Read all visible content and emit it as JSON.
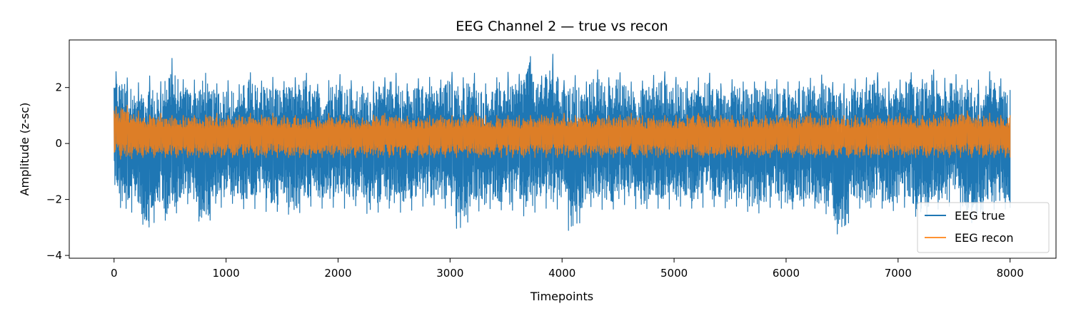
{
  "chart_data": {
    "type": "line",
    "title": "EEG Channel 2 — true vs recon",
    "xlabel": "Timepoints",
    "ylabel": "Amplitude (z-sc)",
    "xlim": [
      -400,
      8410
    ],
    "ylim": [
      -4.1,
      3.7
    ],
    "xticks": [
      0,
      1000,
      2000,
      3000,
      4000,
      5000,
      6000,
      7000,
      8000
    ],
    "xtick_labels": [
      "0",
      "1000",
      "2000",
      "3000",
      "4000",
      "5000",
      "6000",
      "7000",
      "8000"
    ],
    "yticks": [
      -4,
      -2,
      0,
      2
    ],
    "ytick_labels": [
      "−4",
      "−2",
      "0",
      "2"
    ],
    "grid": false,
    "legend": "lower-right",
    "series": [
      {
        "name": "EEG true",
        "color": "#1f77b4",
        "sampled": true,
        "x": [
          0,
          100,
          200,
          300,
          400,
          500,
          600,
          700,
          800,
          900,
          1000,
          1100,
          1200,
          1300,
          1400,
          1500,
          1600,
          1700,
          1800,
          1900,
          2000,
          2100,
          2200,
          2300,
          2400,
          2500,
          2600,
          2700,
          2800,
          2900,
          3000,
          3100,
          3200,
          3300,
          3400,
          3500,
          3600,
          3700,
          3800,
          3900,
          4000,
          4100,
          4200,
          4300,
          4400,
          4500,
          4600,
          4700,
          4800,
          4900,
          5000,
          5100,
          5200,
          5300,
          5400,
          5500,
          5600,
          5700,
          5800,
          5900,
          6000,
          6100,
          6200,
          6300,
          6400,
          6500,
          6600,
          6700,
          6800,
          6900,
          7000,
          7100,
          7200,
          7300,
          7400,
          7500,
          7600,
          7700,
          7800,
          7900,
          8000
        ],
        "y_max": [
          2.6,
          2.4,
          2.1,
          2.5,
          2.0,
          3.2,
          2.3,
          2.2,
          2.6,
          2.1,
          2.3,
          2.0,
          2.6,
          2.2,
          2.4,
          2.2,
          2.3,
          2.6,
          2.1,
          2.2,
          2.5,
          2.3,
          2.0,
          2.2,
          2.3,
          2.6,
          2.1,
          2.3,
          2.4,
          2.2,
          2.6,
          2.3,
          2.6,
          2.1,
          2.3,
          2.6,
          2.3,
          3.3,
          2.2,
          3.4,
          2.2,
          2.5,
          2.1,
          2.7,
          2.3,
          2.6,
          2.2,
          2.2,
          2.4,
          2.6,
          2.4,
          2.2,
          2.3,
          2.6,
          2.1,
          2.3,
          2.2,
          2.2,
          2.2,
          2.3,
          2.2,
          2.2,
          2.3,
          2.5,
          2.2,
          2.1,
          2.3,
          2.3,
          2.6,
          2.2,
          2.2,
          2.6,
          2.2,
          2.7,
          2.3,
          2.5,
          2.3,
          2.2,
          2.6,
          2.4,
          1.9
        ],
        "y_min": [
          -1.6,
          -2.8,
          -2.2,
          -3.4,
          -2.4,
          -3.0,
          -2.1,
          -2.2,
          -3.2,
          -2.4,
          -2.2,
          -2.1,
          -2.5,
          -2.2,
          -2.6,
          -2.3,
          -2.7,
          -2.3,
          -2.2,
          -2.4,
          -2.2,
          -2.4,
          -2.1,
          -2.8,
          -2.2,
          -2.4,
          -2.5,
          -2.3,
          -2.2,
          -2.2,
          -2.4,
          -3.5,
          -2.3,
          -2.5,
          -2.2,
          -2.5,
          -2.3,
          -2.8,
          -2.2,
          -2.4,
          -2.3,
          -3.7,
          -2.2,
          -2.3,
          -2.4,
          -2.3,
          -2.1,
          -2.5,
          -2.2,
          -2.4,
          -2.3,
          -2.2,
          -2.4,
          -2.2,
          -2.3,
          -2.3,
          -2.2,
          -2.6,
          -2.4,
          -2.2,
          -2.4,
          -2.3,
          -2.2,
          -2.4,
          -2.6,
          -3.7,
          -2.2,
          -2.4,
          -2.2,
          -2.4,
          -2.4,
          -2.2,
          -2.9,
          -2.4,
          -2.3,
          -2.2,
          -2.6,
          -3.0,
          -2.3,
          -2.4,
          -2.3
        ]
      },
      {
        "name": "EEG recon",
        "color": "#ff7f0e",
        "sampled": true,
        "x": [
          0,
          100,
          200,
          300,
          400,
          500,
          600,
          700,
          800,
          900,
          1000,
          1100,
          1200,
          1300,
          1400,
          1500,
          1600,
          1700,
          1800,
          1900,
          2000,
          2100,
          2200,
          2300,
          2400,
          2500,
          2600,
          2700,
          2800,
          2900,
          3000,
          3100,
          3200,
          3300,
          3400,
          3500,
          3600,
          3700,
          3800,
          3900,
          4000,
          4100,
          4200,
          4300,
          4400,
          4500,
          4600,
          4700,
          4800,
          4900,
          5000,
          5100,
          5200,
          5300,
          5400,
          5500,
          5600,
          5700,
          5800,
          5900,
          6000,
          6100,
          6200,
          6300,
          6400,
          6500,
          6600,
          6700,
          6800,
          6900,
          7000,
          7100,
          7200,
          7300,
          7400,
          7500,
          7600,
          7700,
          7800,
          7900,
          8000
        ],
        "y_max": [
          1.3,
          1.4,
          1.2,
          1.0,
          1.1,
          1.0,
          1.0,
          1.0,
          1.0,
          1.1,
          1.0,
          1.0,
          1.1,
          1.0,
          1.1,
          1.0,
          1.0,
          1.0,
          0.9,
          1.1,
          1.0,
          1.0,
          0.9,
          1.0,
          1.1,
          1.0,
          1.0,
          0.9,
          1.0,
          1.0,
          1.0,
          1.0,
          1.1,
          1.0,
          1.0,
          1.0,
          1.0,
          1.0,
          1.0,
          1.1,
          1.1,
          1.0,
          1.0,
          1.0,
          1.0,
          1.0,
          1.1,
          1.0,
          1.0,
          1.0,
          1.0,
          1.0,
          1.1,
          1.0,
          1.0,
          1.0,
          1.0,
          1.0,
          1.0,
          1.0,
          1.0,
          1.0,
          1.1,
          1.0,
          1.0,
          1.0,
          1.0,
          1.0,
          1.0,
          1.0,
          1.1,
          1.0,
          1.0,
          1.0,
          1.1,
          1.0,
          1.2,
          1.0,
          1.1,
          1.0,
          1.0
        ],
        "y_min": [
          -0.5,
          -0.6,
          -0.5,
          -0.5,
          -0.5,
          -0.5,
          -0.5,
          -0.5,
          -0.5,
          -0.5,
          -0.5,
          -0.5,
          -0.5,
          -0.5,
          -0.5,
          -0.5,
          -0.5,
          -0.5,
          -0.5,
          -0.5,
          -0.5,
          -0.5,
          -0.5,
          -0.5,
          -0.5,
          -0.5,
          -0.5,
          -0.5,
          -0.5,
          -0.5,
          -0.5,
          -0.5,
          -0.5,
          -0.5,
          -0.5,
          -0.5,
          -0.5,
          -0.5,
          -0.5,
          -0.5,
          -0.5,
          -0.5,
          -0.5,
          -0.5,
          -0.5,
          -0.5,
          -0.5,
          -0.5,
          -0.5,
          -0.5,
          -0.5,
          -0.5,
          -0.5,
          -0.5,
          -0.5,
          -0.5,
          -0.5,
          -0.5,
          -0.5,
          -0.5,
          -0.5,
          -0.5,
          -0.5,
          -0.5,
          -0.5,
          -0.5,
          -0.5,
          -0.5,
          -0.5,
          -0.5,
          -0.5,
          -0.5,
          -0.5,
          -0.5,
          -0.5,
          -0.5,
          -0.5,
          -0.5,
          -0.5,
          -0.5,
          -0.5
        ]
      }
    ]
  }
}
